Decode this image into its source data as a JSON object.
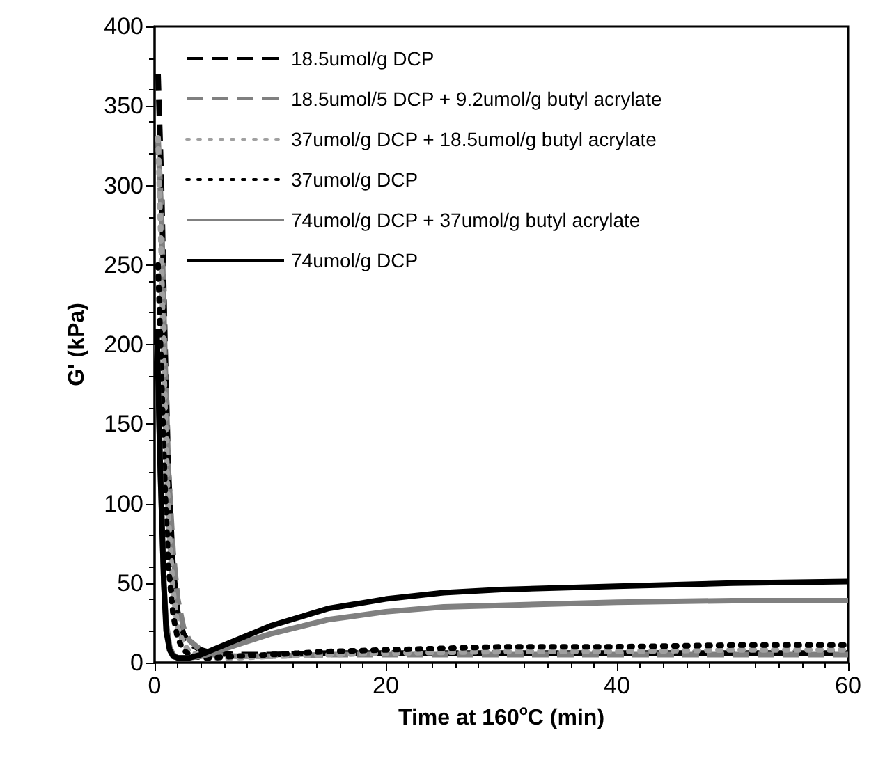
{
  "chart_data": {
    "type": "line",
    "xlabel": "Time at 160$^{o}$C (min)",
    "ylabel": "G' (kPa)",
    "xlim": [
      0,
      60
    ],
    "xticks": [
      0,
      20,
      40,
      60
    ],
    "ylim": [
      0,
      400
    ],
    "yticks": [
      0,
      50,
      100,
      150,
      200,
      250,
      300,
      350,
      400
    ],
    "legend": "top left",
    "grid": false,
    "marker": "none",
    "series": [
      {
        "name": "18.5umol/g DCP",
        "color": "#000000",
        "line_style": "dashed",
        "x": [
          0.3,
          0.6,
          0.9,
          1.2,
          1.6,
          2,
          2.5,
          3,
          4,
          5,
          7,
          10,
          15,
          20,
          30,
          40,
          50,
          60
        ],
        "values": [
          370,
          300,
          200,
          120,
          60,
          32,
          18,
          12,
          8,
          6,
          5,
          5,
          6,
          6,
          6,
          6,
          6,
          6
        ]
      },
      {
        "name": "18.5umol/5 DCP + 9.2umol/g butyl acrylate",
        "color": "#808080",
        "line_style": "dashed",
        "x": [
          0.3,
          0.6,
          0.9,
          1.2,
          1.6,
          2,
          2.5,
          3,
          4,
          5,
          7,
          10,
          15,
          20,
          30,
          40,
          50,
          60
        ],
        "values": [
          330,
          280,
          190,
          120,
          70,
          40,
          22,
          14,
          8,
          5,
          4,
          4,
          5,
          5,
          5,
          5,
          5,
          5
        ]
      },
      {
        "name": "37umol/g DCP + 18.5umol/g butyl acrylate",
        "color": "#a0a0a0",
        "line_style": "dotted",
        "x": [
          0.3,
          0.6,
          0.9,
          1.2,
          1.6,
          2,
          2.5,
          3,
          4,
          5,
          7,
          10,
          15,
          20,
          30,
          40,
          50,
          60
        ],
        "values": [
          330,
          250,
          160,
          90,
          45,
          22,
          12,
          7,
          4,
          3,
          3,
          4,
          5,
          6,
          7,
          7,
          8,
          8
        ]
      },
      {
        "name": "37umol/g DCP",
        "color": "#000000",
        "line_style": "dotted",
        "x": [
          0.3,
          0.6,
          0.9,
          1.2,
          1.6,
          2,
          2.5,
          3,
          4,
          5,
          7,
          10,
          15,
          20,
          30,
          40,
          50,
          60
        ],
        "values": [
          250,
          180,
          110,
          60,
          30,
          15,
          8,
          5,
          3,
          3,
          4,
          5,
          7,
          8,
          10,
          10,
          11,
          11
        ]
      },
      {
        "name": "74umol/g DCP + 37umol/g butyl acrylate",
        "color": "#808080",
        "line_style": "solid",
        "x": [
          0.2,
          0.5,
          0.8,
          1,
          1.3,
          1.6,
          2,
          3,
          4,
          5,
          7,
          10,
          15,
          20,
          25,
          30,
          40,
          50,
          60
        ],
        "values": [
          200,
          120,
          50,
          25,
          10,
          5,
          3,
          3,
          4,
          6,
          11,
          18,
          27,
          32,
          35,
          36,
          38,
          39,
          39
        ]
      },
      {
        "name": "74umol/g DCP",
        "color": "#000000",
        "line_style": "solid",
        "x": [
          0.2,
          0.5,
          0.8,
          1,
          1.3,
          1.6,
          2,
          3,
          4,
          5,
          7,
          10,
          15,
          20,
          25,
          30,
          40,
          50,
          60
        ],
        "values": [
          210,
          120,
          50,
          20,
          8,
          4,
          3,
          3,
          5,
          8,
          14,
          23,
          34,
          40,
          44,
          46,
          48,
          50,
          51
        ]
      }
    ]
  }
}
